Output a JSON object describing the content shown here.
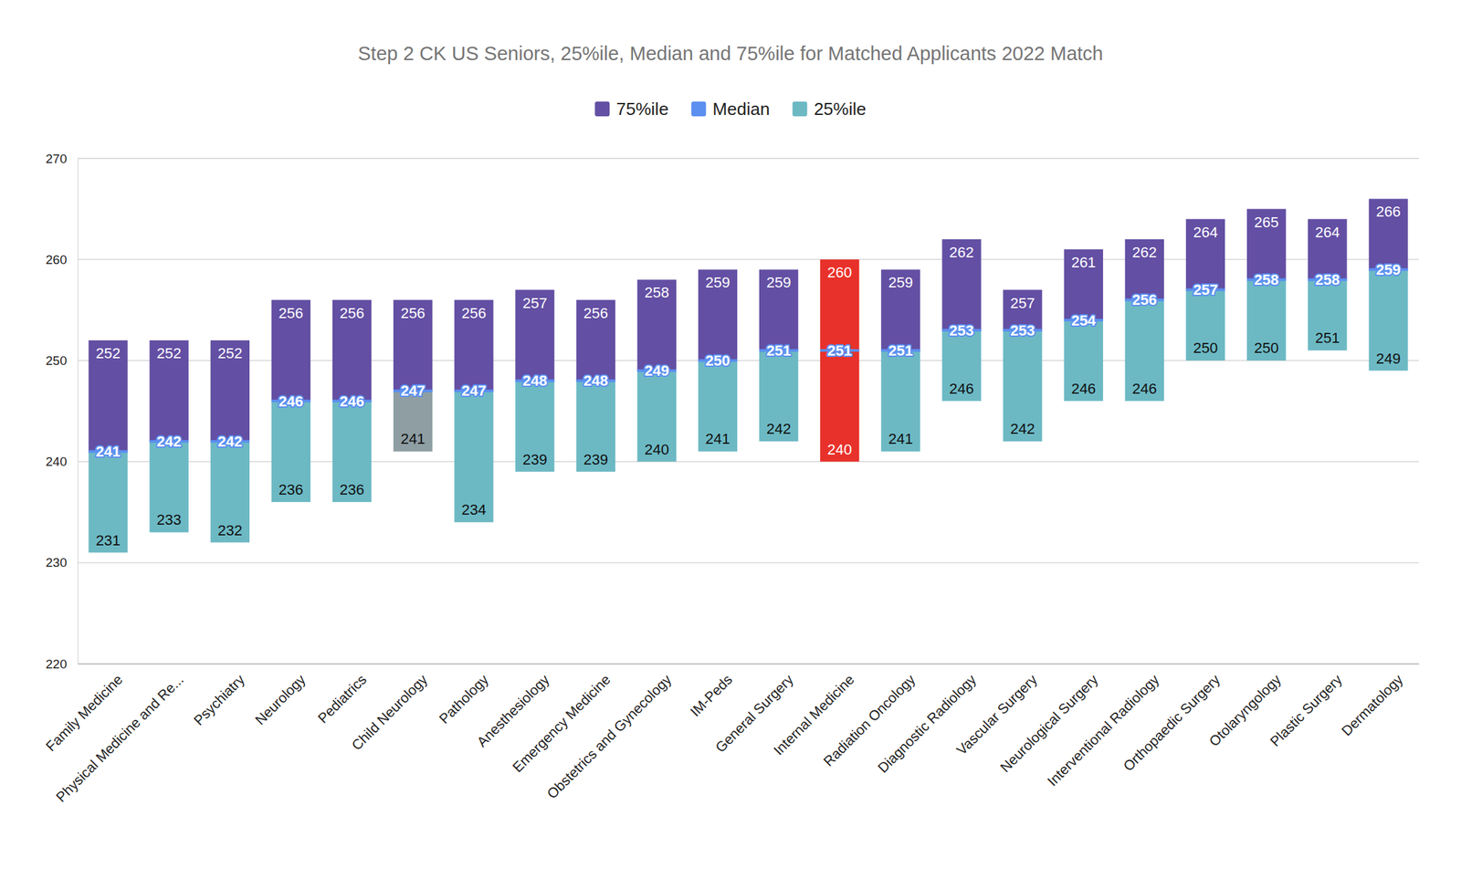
{
  "chart_data": {
    "type": "bar",
    "title": "Step 2 CK US Seniors, 25%ile, Median and 75%ile for Matched Applicants 2022 Match",
    "categories": [
      "Family Medicine",
      "Physical Medicine and Re...",
      "Psychiatry",
      "Neurology",
      "Pediatrics",
      "Child Neurology",
      "Pathology",
      "Anesthesiology",
      "Emergency Medicine",
      "Obstetrics and Gynecology",
      "IM-Peds",
      "General Surgery",
      "Internal Medicine",
      "Radiation Oncology",
      "Diagnostic Radiology",
      "Vascular Surgery",
      "Neurological Surgery",
      "Interventional Radiology",
      "Orthopaedic Surgery",
      "Otolaryngology",
      "Plastic Surgery",
      "Dermatology"
    ],
    "series": [
      {
        "name": "75%ile",
        "color": "#634fa3",
        "colors": [
          "#634fa3",
          "#634fa3",
          "#634fa3",
          "#634fa3",
          "#634fa3",
          "#634fa3",
          "#634fa3",
          "#634fa3",
          "#634fa3",
          "#634fa3",
          "#634fa3",
          "#634fa3",
          "#e8312a",
          "#634fa3",
          "#634fa3",
          "#634fa3",
          "#634fa3",
          "#634fa3",
          "#634fa3",
          "#634fa3",
          "#634fa3",
          "#634fa3"
        ],
        "values": [
          252,
          252,
          252,
          256,
          256,
          256,
          256,
          257,
          256,
          258,
          259,
          259,
          260,
          259,
          262,
          257,
          261,
          262,
          264,
          265,
          264,
          266
        ]
      },
      {
        "name": "Median",
        "color": "#5b8ff0",
        "values": [
          241,
          242,
          242,
          246,
          246,
          247,
          247,
          248,
          248,
          249,
          250,
          251,
          251,
          251,
          253,
          253,
          254,
          256,
          257,
          258,
          258,
          259
        ]
      },
      {
        "name": "25%ile",
        "color": "#6cb9c4",
        "colors": [
          "#6cb9c4",
          "#6cb9c4",
          "#6cb9c4",
          "#6cb9c4",
          "#6cb9c4",
          "#8e9ea3",
          "#6cb9c4",
          "#6cb9c4",
          "#6cb9c4",
          "#6cb9c4",
          "#6cb9c4",
          "#6cb9c4",
          "#e8312a",
          "#6cb9c4",
          "#6cb9c4",
          "#6cb9c4",
          "#6cb9c4",
          "#6cb9c4",
          "#6cb9c4",
          "#6cb9c4",
          "#6cb9c4",
          "#6cb9c4"
        ],
        "values": [
          231,
          233,
          232,
          236,
          236,
          241,
          234,
          239,
          239,
          240,
          241,
          242,
          240,
          241,
          246,
          242,
          246,
          246,
          250,
          250,
          251,
          249
        ]
      }
    ],
    "ylim": [
      220,
      270
    ],
    "yticks": [
      220,
      230,
      240,
      250,
      260,
      270
    ],
    "grid": true,
    "legend": "top",
    "data_labels": true
  }
}
